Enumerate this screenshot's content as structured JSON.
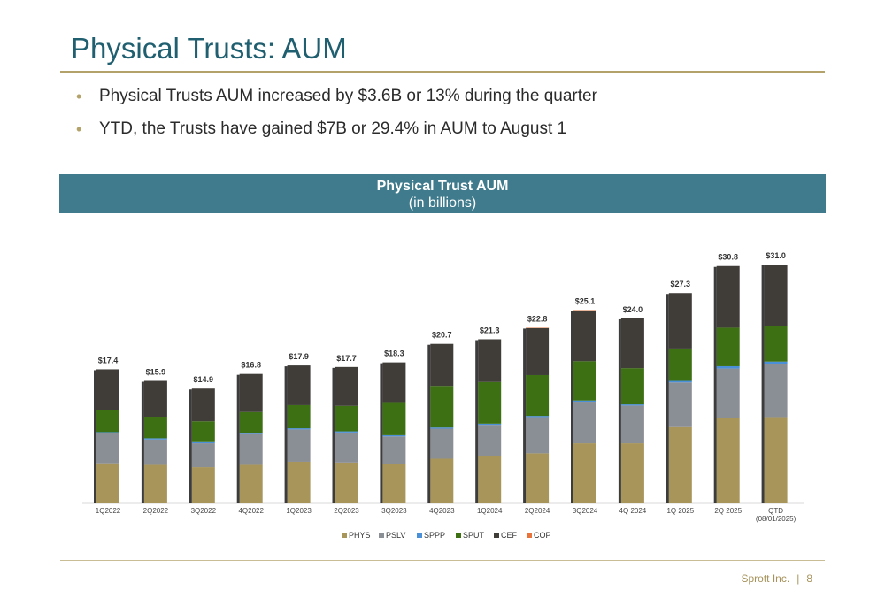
{
  "header": {
    "title": "Physical Trusts: AUM"
  },
  "bullets": [
    "Physical Trusts AUM increased by $3.6B or 13% during the quarter",
    "YTD, the Trusts have gained $7B or 29.4% in AUM to August 1"
  ],
  "chart_banner": {
    "title": "Physical Trust AUM",
    "subtitle": "(in billions)"
  },
  "footer": {
    "company": "Sprott Inc.",
    "separator": "|",
    "page_number": "8"
  },
  "colors": {
    "accent_gold": "#b3a26a",
    "title_teal": "#1f5f70",
    "banner_teal": "#3f7b8c"
  },
  "chart_data": {
    "type": "bar",
    "stacked": true,
    "categories": [
      "1Q2022",
      "2Q2022",
      "3Q2022",
      "4Q2022",
      "1Q2023",
      "2Q2023",
      "3Q2023",
      "4Q2023",
      "1Q2024",
      "2Q2024",
      "3Q2024",
      "4Q 2024",
      "1Q 2025",
      "2Q 2025",
      "QTD (08/01/2025)"
    ],
    "category_labels": [
      [
        "1Q2022"
      ],
      [
        "2Q2022"
      ],
      [
        "3Q2022"
      ],
      [
        "4Q2022"
      ],
      [
        "1Q2023"
      ],
      [
        "2Q2023"
      ],
      [
        "3Q2023"
      ],
      [
        "4Q2023"
      ],
      [
        "1Q2024"
      ],
      [
        "2Q2024"
      ],
      [
        "3Q2024"
      ],
      [
        "4Q 2024"
      ],
      [
        "1Q 2025"
      ],
      [
        "2Q 2025"
      ],
      [
        "QTD",
        "(08/01/2025)"
      ]
    ],
    "totals": [
      17.4,
      15.9,
      14.9,
      16.8,
      17.9,
      17.7,
      18.3,
      20.7,
      21.3,
      22.8,
      25.1,
      24.0,
      27.3,
      30.8,
      31.0
    ],
    "total_labels": [
      "$17.4",
      "$15.9",
      "$14.9",
      "$16.8",
      "$17.9",
      "$17.7",
      "$18.3",
      "$20.7",
      "$21.3",
      "$22.8",
      "$25.1",
      "$24.0",
      "$27.3",
      "$30.8",
      "$31.0"
    ],
    "series": [
      {
        "name": "PHYS",
        "color": "#a8955a",
        "values": [
          5.2,
          5.0,
          4.7,
          5.0,
          5.4,
          5.3,
          5.1,
          5.8,
          6.2,
          6.5,
          7.8,
          7.8,
          9.9,
          11.1,
          11.2
        ]
      },
      {
        "name": "PSLV",
        "color": "#8a8e95",
        "values": [
          3.9,
          3.3,
          3.1,
          4.0,
          4.2,
          3.9,
          3.6,
          3.9,
          4.0,
          4.7,
          5.4,
          4.9,
          5.8,
          6.4,
          6.9
        ]
      },
      {
        "name": "SPPP",
        "color": "#4a90d9",
        "values": [
          0.15,
          0.15,
          0.15,
          0.15,
          0.15,
          0.15,
          0.15,
          0.15,
          0.15,
          0.15,
          0.15,
          0.15,
          0.2,
          0.3,
          0.3
        ]
      },
      {
        "name": "SPUT",
        "color": "#3d7012",
        "values": [
          2.9,
          2.8,
          2.7,
          2.7,
          3.0,
          3.3,
          4.3,
          5.4,
          5.4,
          5.3,
          5.1,
          4.7,
          4.2,
          5.0,
          4.6
        ]
      },
      {
        "name": "CEF",
        "color": "#403d39",
        "values": [
          5.25,
          4.65,
          4.25,
          4.95,
          5.15,
          5.05,
          5.15,
          5.45,
          5.55,
          6.1,
          6.6,
          6.45,
          7.2,
          8.0,
          8.0
        ]
      },
      {
        "name": "COP",
        "color": "#e8743b",
        "values": [
          0,
          0,
          0,
          0,
          0,
          0,
          0,
          0,
          0,
          0.05,
          0.05,
          0,
          0,
          0,
          0
        ]
      }
    ],
    "legend_position": "bottom",
    "ylim": [
      0,
      33
    ],
    "grid": false
  }
}
